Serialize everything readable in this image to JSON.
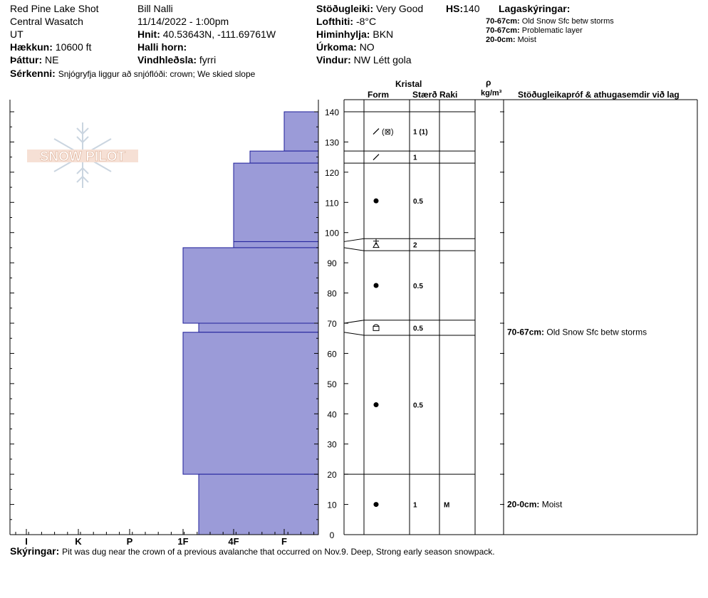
{
  "header": {
    "location": "Red Pine Lake Shot",
    "range": "Central Wasatch",
    "state": "UT",
    "elevation_label": "Hækkun:",
    "elevation_value": "10600 ft",
    "aspect_label": "Þáttur:",
    "aspect_value": "NE",
    "observer": "Bill Nalli",
    "datetime": "11/14/2022 - 1:00pm",
    "coords_label": "Hnit:",
    "coords_value": "40.53643N, -111.69761W",
    "slope_label": "Halli horn:",
    "slope_value": "",
    "wind_loading_label": "Vindhleðsla:",
    "wind_loading_value": "fyrri",
    "stability_label": "Stöðugleiki:",
    "stability_value": "Very Good",
    "hs_label": "HS:",
    "hs_value": "140",
    "air_temp_label": "Lofthiti:",
    "air_temp_value": "-8°C",
    "sky_label": "Himinhylja:",
    "sky_value": "BKN",
    "precip_label": "Úrkoma:",
    "precip_value": "NO",
    "wind_label": "Vindur:",
    "wind_value": "NW Létt gola",
    "features_label": "Sérkenni:",
    "features_value": "Snjógryfja liggur að snjóflóði: crown; We skied slope"
  },
  "legend": {
    "title": "Lagaskýringar:",
    "items": [
      {
        "range": "70-67cm:",
        "text": "Old Snow Sfc betw storms"
      },
      {
        "range": "70-67cm:",
        "text": "Problematic layer"
      },
      {
        "range": "20-0cm:",
        "text": "Moist"
      }
    ]
  },
  "columns": {
    "kristal": "Kristal",
    "form": "Form",
    "size": "Stærð",
    "moisture": "Raki",
    "density_symbol": "ρ",
    "density_unit": "kg/m³",
    "comments": "Stöðugleikapróf & athugasemdir við lag"
  },
  "logo_text": "SNOW PILOT",
  "notes_label": "Skýringar:",
  "notes_value": "Pit was dug near the crown of a previous avalanche that occurred on Nov.9. Deep, Strong early season snowpack.",
  "chart_data": {
    "type": "bar",
    "title": "",
    "xlabel": "",
    "ylabel": "",
    "hardness_ticks": [
      "I",
      "K",
      "P",
      "1F",
      "4F",
      "F"
    ],
    "height_ticks": [
      0,
      10,
      20,
      30,
      40,
      50,
      60,
      70,
      80,
      90,
      100,
      110,
      120,
      130,
      140
    ],
    "ylim": [
      0,
      140
    ],
    "hardness_layers": [
      {
        "top": 140,
        "bottom": 127,
        "hardness": "F"
      },
      {
        "top": 127,
        "bottom": 123,
        "hardness": "4F+"
      },
      {
        "top": 123,
        "bottom": 97,
        "hardness": "4F"
      },
      {
        "top": 97,
        "bottom": 95,
        "hardness": "4F"
      },
      {
        "top": 95,
        "bottom": 70,
        "hardness": "1F"
      },
      {
        "top": 70,
        "bottom": 67,
        "hardness": "1F+"
      },
      {
        "top": 67,
        "bottom": 20,
        "hardness": "1F"
      },
      {
        "top": 20,
        "bottom": 0,
        "hardness": "1F+"
      }
    ],
    "crystal_layers": [
      {
        "top": 140,
        "bottom": 127,
        "form": "DF (PP)",
        "size": "1 (1)",
        "moisture": ""
      },
      {
        "top": 127,
        "bottom": 123,
        "form": "DF",
        "size": "1",
        "moisture": ""
      },
      {
        "top": 123,
        "bottom": 98,
        "form": "RG",
        "size": "0.5",
        "moisture": ""
      },
      {
        "top": 98,
        "bottom": 94,
        "form": "SH",
        "size": "2",
        "moisture": ""
      },
      {
        "top": 94,
        "bottom": 71,
        "form": "RG",
        "size": "0.5",
        "moisture": ""
      },
      {
        "top": 71,
        "bottom": 66,
        "form": "FC",
        "size": "0.5",
        "moisture": ""
      },
      {
        "top": 66,
        "bottom": 20,
        "form": "RG",
        "size": "0.5",
        "moisture": ""
      },
      {
        "top": 20,
        "bottom": 0,
        "form": "RG",
        "size": "1",
        "moisture": "M"
      }
    ],
    "layer_comments": [
      {
        "at": 67,
        "range": "70-67cm:",
        "text": "Old Snow Sfc betw storms"
      },
      {
        "at": 10,
        "range": "20-0cm:",
        "text": "Moist"
      }
    ]
  }
}
